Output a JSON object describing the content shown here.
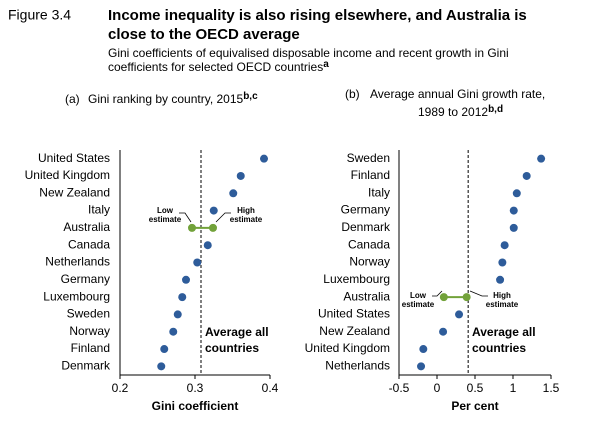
{
  "figure": {
    "label": "Figure 3.4",
    "title": [
      "Income inequality is also rising elsewhere, and Australia is",
      "close to the OECD average"
    ],
    "subtitle": [
      "Gini coefficients of equivalised disposable income and recent growth in Gini",
      "coefficients for selected OECD countries"
    ],
    "subtitle_sup": "a"
  },
  "chart_data": [
    {
      "type": "dot",
      "panel": "(a)",
      "title": [
        "Gini ranking by country, 2015"
      ],
      "title_sup": "b,c",
      "x_label": "Gini coefficient",
      "categories": [
        "United States",
        "United Kingdom",
        "New Zealand",
        "Italy",
        "Australia",
        "Canada",
        "Netherlands",
        "Germany",
        "Luxembourg",
        "Sweden",
        "Norway",
        "Finland",
        "Denmark"
      ],
      "values": [
        0.392,
        0.361,
        0.351,
        0.325,
        null,
        0.317,
        0.303,
        0.288,
        0.283,
        0.277,
        0.271,
        0.259,
        0.255
      ],
      "low_estimate": [
        null,
        null,
        null,
        null,
        0.296,
        null,
        null,
        null,
        null,
        null,
        null,
        null,
        null
      ],
      "high_estimate": [
        null,
        null,
        null,
        null,
        0.324,
        null,
        null,
        null,
        null,
        null,
        null,
        null,
        null
      ],
      "color": "#2e5c9a",
      "estimate_color": "#72a23a",
      "xlim": [
        0.2,
        0.4
      ],
      "xticks": [
        0.2,
        0.3,
        0.4
      ],
      "reference_line": 0.308,
      "annotations": {
        "low": [
          "Low",
          "estimate"
        ],
        "high": [
          "High",
          "estimate"
        ],
        "average": [
          "Average all",
          "countries"
        ]
      }
    },
    {
      "type": "dot",
      "panel": "(b)",
      "title": [
        "Average annual Gini growth rate,",
        "1989 to 2012"
      ],
      "title_sup": "b,d",
      "x_label": "Per cent",
      "categories": [
        "Sweden",
        "Finland",
        "Italy",
        "Germany",
        "Denmark",
        "Canada",
        "Norway",
        "Luxembourg",
        "Australia",
        "United States",
        "New Zealand",
        "United Kingdom",
        "Netherlands"
      ],
      "values": [
        1.37,
        1.18,
        1.05,
        1.01,
        1.01,
        0.89,
        0.86,
        0.83,
        null,
        0.29,
        0.08,
        -0.18,
        -0.21
      ],
      "low_estimate": [
        null,
        null,
        null,
        null,
        null,
        null,
        null,
        null,
        0.09,
        null,
        null,
        null,
        null
      ],
      "high_estimate": [
        null,
        null,
        null,
        null,
        null,
        null,
        null,
        null,
        0.39,
        null,
        null,
        null,
        null
      ],
      "color": "#2e5c9a",
      "estimate_color": "#72a23a",
      "xlim": [
        -0.5,
        1.5
      ],
      "xticks": [
        -0.5,
        0,
        0.5,
        1,
        1.5
      ],
      "reference_line": 0.41,
      "annotations": {
        "low": [
          "Low",
          "estimate"
        ],
        "high": [
          "High",
          "estimate"
        ],
        "average": [
          "Average all",
          "countries"
        ]
      }
    }
  ]
}
